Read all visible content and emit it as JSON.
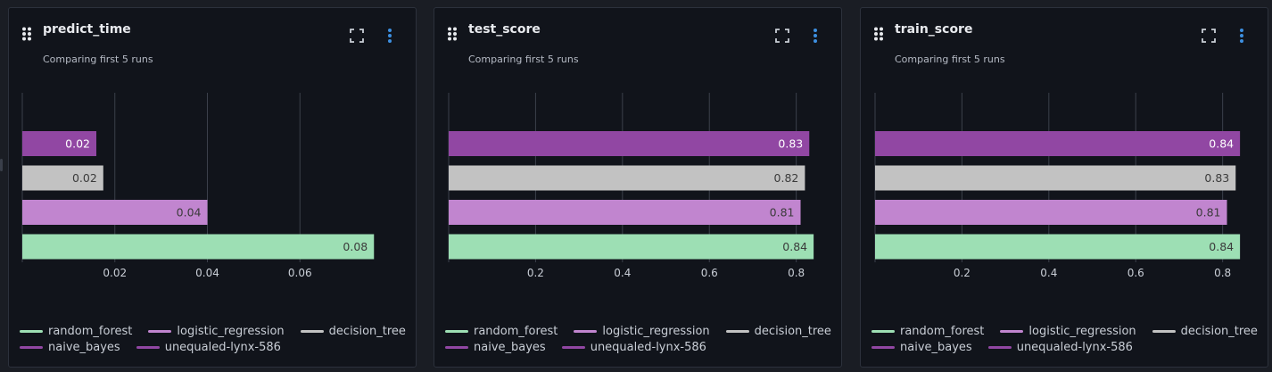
{
  "runs": [
    {
      "name": "random_forest",
      "color": "#9ddfb4"
    },
    {
      "name": "logistic_regression",
      "color": "#c185cf"
    },
    {
      "name": "decision_tree",
      "color": "#c2c2c2"
    },
    {
      "name": "naive_bayes",
      "color": "#9147a3"
    },
    {
      "name": "unequaled-lynx-586",
      "color": "#9147a3"
    }
  ],
  "cards": [
    {
      "title": "predict_time",
      "subtitle": "Comparing first 5 runs",
      "ticks": [
        "0.02",
        "0.04",
        "0.06"
      ],
      "bars": [
        {
          "label": "0.02",
          "color": "#9147a3",
          "text_color": "#ffffff"
        },
        {
          "label": "0.02",
          "color": "#c2c2c2",
          "text_color": "#3b3b3b"
        },
        {
          "label": "0.04",
          "color": "#c185cf",
          "text_color": "#3b3b3b"
        },
        {
          "label": "0.08",
          "color": "#9ddfb4",
          "text_color": "#3b3b3b"
        }
      ]
    },
    {
      "title": "test_score",
      "subtitle": "Comparing first 5 runs",
      "ticks": [
        "0.2",
        "0.4",
        "0.6",
        "0.8"
      ],
      "bars": [
        {
          "label": "0.83",
          "color": "#9147a3",
          "text_color": "#ffffff"
        },
        {
          "label": "0.82",
          "color": "#c2c2c2",
          "text_color": "#3b3b3b"
        },
        {
          "label": "0.81",
          "color": "#c185cf",
          "text_color": "#3b3b3b"
        },
        {
          "label": "0.84",
          "color": "#9ddfb4",
          "text_color": "#3b3b3b"
        }
      ]
    },
    {
      "title": "train_score",
      "subtitle": "Comparing first 5 runs",
      "ticks": [
        "0.2",
        "0.4",
        "0.6",
        "0.8"
      ],
      "bars": [
        {
          "label": "0.84",
          "color": "#9147a3",
          "text_color": "#ffffff"
        },
        {
          "label": "0.83",
          "color": "#c2c2c2",
          "text_color": "#3b3b3b"
        },
        {
          "label": "0.81",
          "color": "#c185cf",
          "text_color": "#3b3b3b"
        },
        {
          "label": "0.84",
          "color": "#9ddfb4",
          "text_color": "#3b3b3b"
        }
      ]
    }
  ],
  "chart_data": [
    {
      "type": "bar",
      "orientation": "horizontal",
      "title": "predict_time",
      "subtitle": "Comparing first 5 runs",
      "categories": [
        "naive_bayes",
        "decision_tree",
        "logistic_regression",
        "random_forest"
      ],
      "values": [
        0.016,
        0.0175,
        0.04,
        0.076
      ],
      "xlim": [
        0,
        0.08
      ],
      "ticks": [
        0.02,
        0.04,
        0.06
      ],
      "grid": true,
      "legend": "bottom"
    },
    {
      "type": "bar",
      "orientation": "horizontal",
      "title": "test_score",
      "subtitle": "Comparing first 5 runs",
      "categories": [
        "naive_bayes",
        "decision_tree",
        "logistic_regression",
        "random_forest"
      ],
      "values": [
        0.83,
        0.82,
        0.81,
        0.84
      ],
      "xlim": [
        0,
        0.85
      ],
      "ticks": [
        0.2,
        0.4,
        0.6,
        0.8
      ],
      "grid": true,
      "legend": "bottom"
    },
    {
      "type": "bar",
      "orientation": "horizontal",
      "title": "train_score",
      "subtitle": "Comparing first 5 runs",
      "categories": [
        "naive_bayes",
        "decision_tree",
        "logistic_regression",
        "random_forest"
      ],
      "values": [
        0.84,
        0.83,
        0.81,
        0.84
      ],
      "xlim": [
        0,
        0.85
      ],
      "ticks": [
        0.2,
        0.4,
        0.6,
        0.8
      ],
      "grid": true,
      "legend": "bottom"
    }
  ]
}
